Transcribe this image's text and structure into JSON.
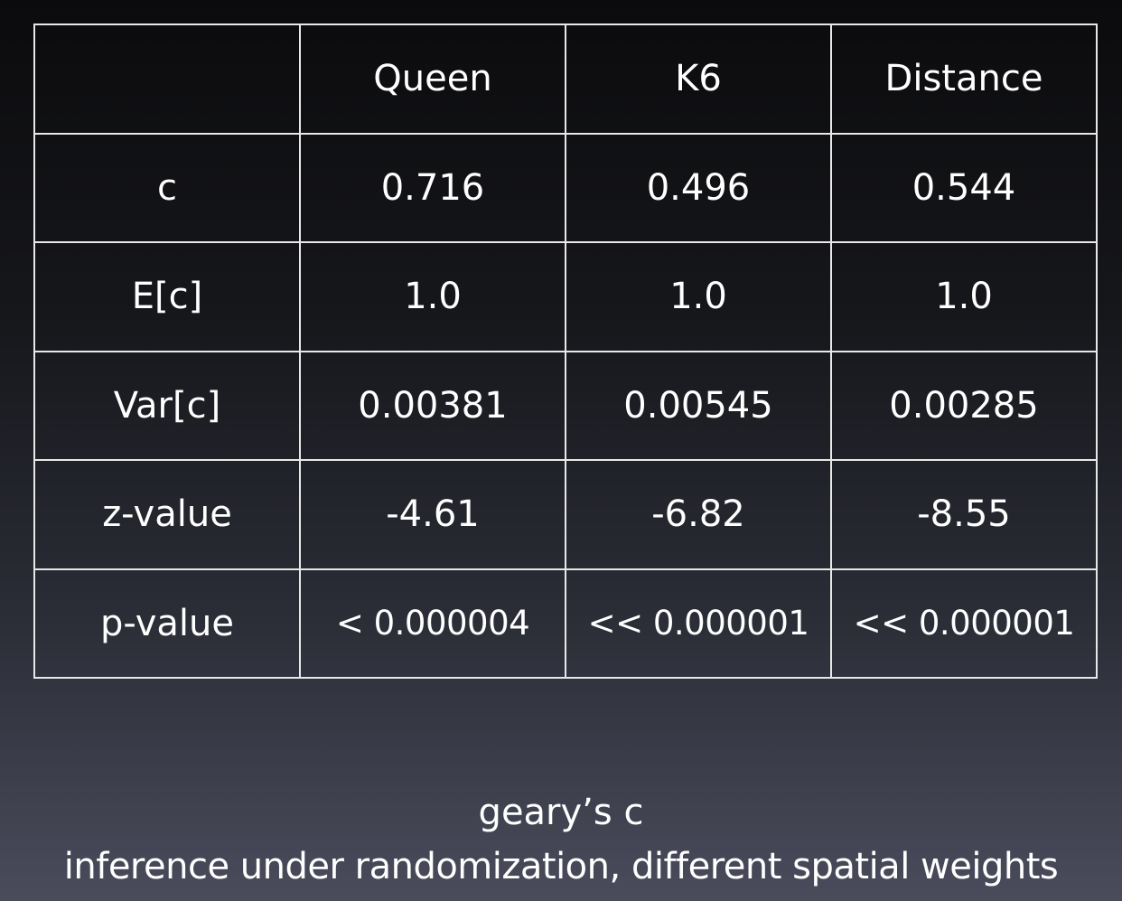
{
  "table": {
    "header": [
      "",
      "Queen",
      "K6",
      "Distance"
    ],
    "rows": [
      {
        "label": "c",
        "values": [
          "0.716",
          "0.496",
          "0.544"
        ]
      },
      {
        "label": "E[c]",
        "values": [
          "1.0",
          "1.0",
          "1.0"
        ]
      },
      {
        "label": "Var[c]",
        "values": [
          "0.00381",
          "0.00545",
          "0.00285"
        ]
      },
      {
        "label": "z-value",
        "values": [
          "-4.61",
          "-6.82",
          "-8.55"
        ]
      },
      {
        "label": "p-value",
        "values": [
          "< 0.000004",
          "<< 0.000001",
          "<< 0.000001"
        ]
      }
    ]
  },
  "caption": {
    "title": "geary’s c",
    "subtitle": "inference under randomization, different spatial weights"
  }
}
